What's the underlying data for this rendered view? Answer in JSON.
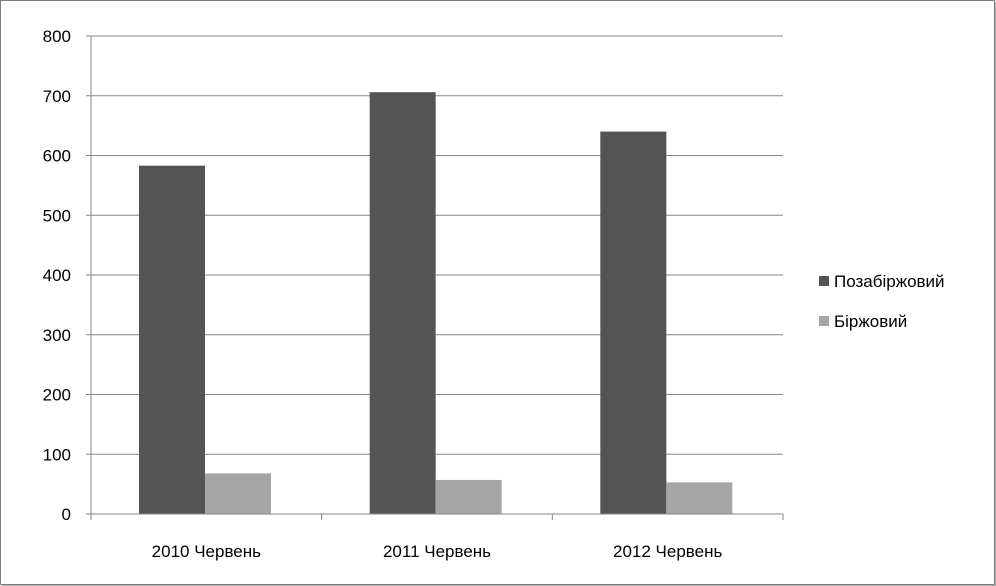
{
  "chart_data": {
    "type": "bar",
    "title": "",
    "xlabel": "",
    "ylabel": "",
    "categories": [
      "2010 Червень",
      "2011 Червень",
      "2012 Червень"
    ],
    "series": [
      {
        "name": "Позабіржовий",
        "values": [
          583,
          706,
          640
        ],
        "color": "#545454"
      },
      {
        "name": "Біржовий",
        "values": [
          68,
          57,
          53
        ],
        "color": "#a6a6a6"
      }
    ],
    "ylim": [
      0,
      800
    ],
    "yticks": [
      0,
      100,
      200,
      300,
      400,
      500,
      600,
      700,
      800
    ],
    "grid": true,
    "legend": "right",
    "grid_color": "#868686",
    "axis_color": "#868686"
  }
}
